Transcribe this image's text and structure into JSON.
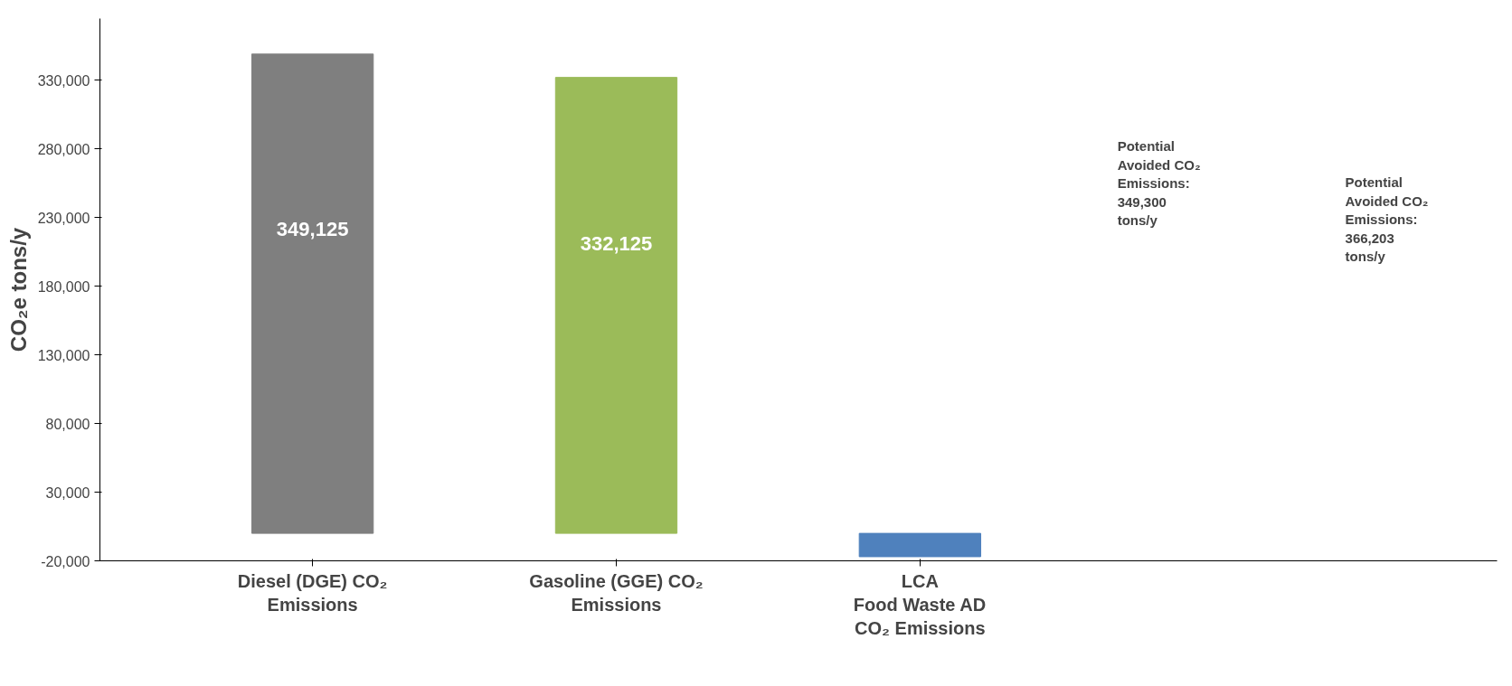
{
  "chart_data": {
    "type": "bar",
    "categories": [
      "Diesel (DGE) CO₂\nEmissions",
      "Gasoline (GGE) CO₂\nEmissions",
      "LCA\nFood Waste AD\nCO₂ Emissions"
    ],
    "values": [
      349125,
      332125,
      -17000
    ],
    "colors": [
      "#7f7f7f",
      "#9bbb59",
      "#4f81bd"
    ],
    "value_labels": [
      "349,125",
      "332,125",
      null
    ],
    "ylabel": "CO₂e tons/y",
    "ylim": [
      -20000,
      375000
    ],
    "yticks": [
      {
        "value": -20000,
        "label": "-20,000"
      },
      {
        "value": 30000,
        "label": "30,000"
      },
      {
        "value": 80000,
        "label": "80,000"
      },
      {
        "value": 130000,
        "label": "130,000"
      },
      {
        "value": 180000,
        "label": "180,000"
      },
      {
        "value": 230000,
        "label": "230,000"
      },
      {
        "value": 280000,
        "label": "280,000"
      },
      {
        "value": 330000,
        "label": "330,000"
      }
    ],
    "grid": false,
    "annotations": [
      "Potential\nAvoided CO₂\nEmissions:\n349,300\ntons/y",
      "Potential\nAvoided CO₂\nEmissions:\n366,203\ntons/y"
    ]
  }
}
